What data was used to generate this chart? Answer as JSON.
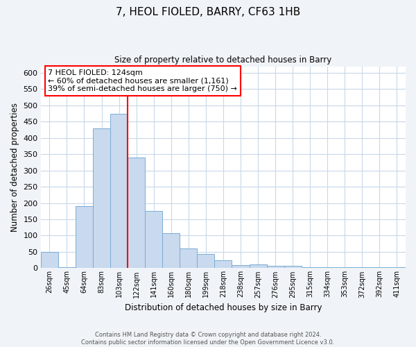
{
  "title": "7, HEOL FIOLED, BARRY, CF63 1HB",
  "subtitle": "Size of property relative to detached houses in Barry",
  "xlabel": "Distribution of detached houses by size in Barry",
  "ylabel": "Number of detached properties",
  "bar_labels": [
    "26sqm",
    "45sqm",
    "64sqm",
    "83sqm",
    "103sqm",
    "122sqm",
    "141sqm",
    "160sqm",
    "180sqm",
    "199sqm",
    "218sqm",
    "238sqm",
    "257sqm",
    "276sqm",
    "295sqm",
    "315sqm",
    "334sqm",
    "353sqm",
    "372sqm",
    "392sqm",
    "411sqm"
  ],
  "bar_values": [
    50,
    3,
    190,
    430,
    475,
    340,
    175,
    108,
    60,
    44,
    25,
    10,
    12,
    8,
    8,
    2,
    2,
    2,
    4,
    2,
    4
  ],
  "bar_color": "#c9d9ee",
  "bar_edgecolor": "#7aadd4",
  "vline_color": "red",
  "vline_index": 4.5,
  "annotation_title": "7 HEOL FIOLED: 124sqm",
  "annotation_line1": "← 60% of detached houses are smaller (1,161)",
  "annotation_line2": "39% of semi-detached houses are larger (750) →",
  "annotation_box_edgecolor": "red",
  "ylim": [
    0,
    620
  ],
  "yticks": [
    0,
    50,
    100,
    150,
    200,
    250,
    300,
    350,
    400,
    450,
    500,
    550,
    600
  ],
  "grid_color": "#c8d8e8",
  "plot_bg_color": "#ffffff",
  "fig_bg_color": "#f0f4f8",
  "footer_line1": "Contains HM Land Registry data © Crown copyright and database right 2024.",
  "footer_line2": "Contains public sector information licensed under the Open Government Licence v3.0."
}
